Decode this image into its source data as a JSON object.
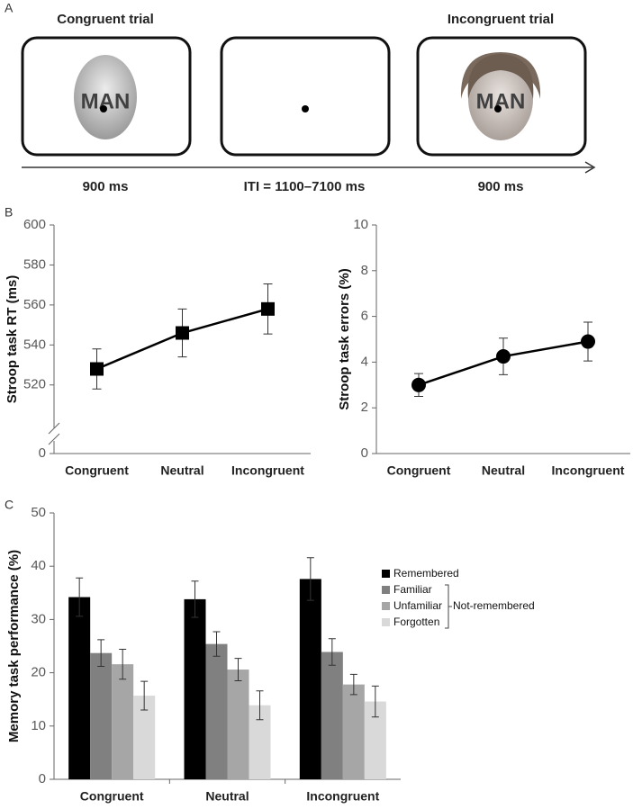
{
  "panel_a": {
    "label": "A",
    "titles": [
      "Congruent trial",
      "Incongruent trial"
    ],
    "words": [
      "MAN",
      "MAN"
    ],
    "timeline": [
      "900 ms",
      "ITI = 1100–7100 ms",
      "900 ms"
    ]
  },
  "chart_data": [
    {
      "type": "line",
      "panel_label": "B",
      "y_label": "Stroop task RT (ms)",
      "categories": [
        "Congruent",
        "Neutral",
        "Incongruent"
      ],
      "series": [
        {
          "color": "#000000",
          "marker": "square",
          "values": [
            528,
            546,
            558
          ],
          "errors": [
            10,
            12,
            12.5
          ]
        }
      ],
      "ylim": [
        0,
        600
      ],
      "axis_break": [
        0,
        510
      ],
      "yticks": [
        0,
        520,
        540,
        560,
        580,
        600
      ]
    },
    {
      "type": "line",
      "y_label": "Stroop task errors (%)",
      "categories": [
        "Congruent",
        "Neutral",
        "Incongruent"
      ],
      "series": [
        {
          "color": "#000000",
          "marker": "circle",
          "values": [
            3.0,
            4.25,
            4.9
          ],
          "errors": [
            0.5,
            0.8,
            0.85
          ]
        }
      ],
      "ylim": [
        0,
        10
      ],
      "yticks": [
        0,
        2,
        4,
        6,
        8,
        10
      ]
    },
    {
      "type": "bar",
      "panel_label": "C",
      "y_label": "Memory task performance (%)",
      "categories": [
        "Congruent",
        "Neutral",
        "Incongruent"
      ],
      "series": [
        {
          "name": "Remembered",
          "color": "#000000",
          "values": [
            34.2,
            33.8,
            37.6
          ],
          "errors": [
            3.6,
            3.4,
            4.0
          ]
        },
        {
          "name": "Familiar",
          "color": "#808080",
          "values": [
            23.7,
            25.4,
            23.9
          ],
          "errors": [
            2.5,
            2.3,
            2.5
          ]
        },
        {
          "name": "Unfamiliar",
          "color": "#a6a6a6",
          "values": [
            21.6,
            20.6,
            17.8
          ],
          "errors": [
            2.8,
            2.1,
            1.9
          ]
        },
        {
          "name": "Forgotten",
          "color": "#d9d9d9",
          "values": [
            15.7,
            13.9,
            14.6
          ],
          "errors": [
            2.7,
            2.7,
            2.9
          ]
        }
      ],
      "ylim": [
        0,
        50
      ],
      "yticks": [
        0,
        10,
        20,
        30,
        40,
        50
      ],
      "legend": "right",
      "legend_note": "Not-remembered"
    }
  ]
}
